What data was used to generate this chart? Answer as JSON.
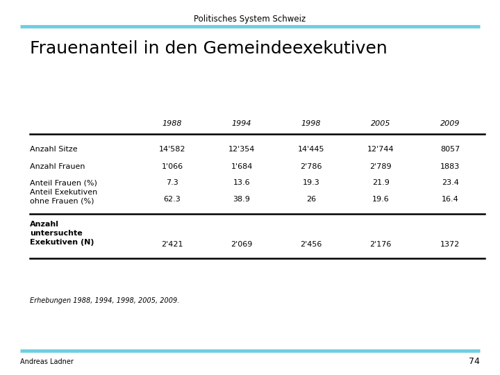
{
  "slide_title": "Politisches System Schweiz",
  "main_title": "Frauenanteil in den Gemeindeexekutiven",
  "years": [
    "1988",
    "1994",
    "1998",
    "2005",
    "2009"
  ],
  "rows": [
    {
      "label": "Anzahl Sitze",
      "bold": false,
      "values": [
        "14'582",
        "12'354",
        "14'445",
        "12'744",
        "8057"
      ]
    },
    {
      "label": "Anzahl Frauen",
      "bold": false,
      "values": [
        "1'066",
        "1'684",
        "2'786",
        "2'789",
        "1883"
      ]
    },
    {
      "label": "Anteil Frauen (%)",
      "bold": false,
      "values": [
        "7.3",
        "13.6",
        "19.3",
        "21.9",
        "23.4"
      ]
    },
    {
      "label": "Anteil Exekutiven\nohne Frauen (%)",
      "bold": false,
      "values": [
        "62.3",
        "38.9",
        "26",
        "19.6",
        "16.4"
      ]
    },
    {
      "label": "Anzahl\nuntersuchte\nExekutiven (N)",
      "bold": true,
      "values": [
        "2'421",
        "2'069",
        "2'456",
        "2'176",
        "1372"
      ]
    }
  ],
  "footnote": "Erhebungen 1988, 1994, 1998, 2005, 2009.",
  "author": "Andreas Ladner",
  "page_number": "74",
  "top_bar_color": "#6ecee0",
  "bottom_bar_color": "#6ecee0",
  "background_color": "#ffffff",
  "slide_title_fontsize": 8.5,
  "main_title_fontsize": 18,
  "table_fontsize": 8,
  "footnote_fontsize": 7,
  "author_fontsize": 7,
  "page_fontsize": 9
}
